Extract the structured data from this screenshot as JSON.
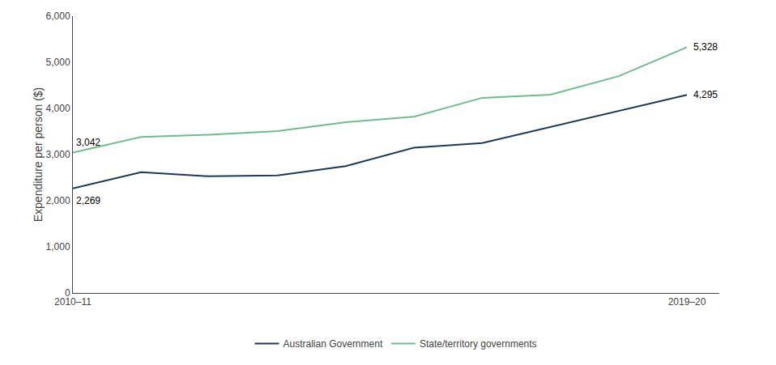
{
  "chart_data": {
    "type": "line",
    "y_label": "Expenditure per person ($)",
    "categories": [
      "2010–11",
      null,
      null,
      null,
      null,
      null,
      null,
      null,
      null,
      "2019–20"
    ],
    "series": [
      {
        "name": "Australian Government",
        "color": "#1a3a5c",
        "values": [
          2269,
          2620,
          2530,
          2550,
          2750,
          3150,
          3250,
          3600,
          3950,
          4295
        ]
      },
      {
        "name": "State/territory governments",
        "color": "#6dbe8c",
        "values": [
          3042,
          3380,
          3430,
          3510,
          3700,
          3820,
          4230,
          4300,
          4700,
          5328
        ]
      }
    ],
    "annotations": [
      {
        "text": "3,042",
        "x": 0,
        "y": 3042
      },
      {
        "text": "2,269",
        "x": 0,
        "y": 2269
      },
      {
        "text": "5,328",
        "x": 9,
        "y": 5328
      },
      {
        "text": "4,295",
        "x": 9,
        "y": 4295
      }
    ],
    "ylim": [
      0,
      6000
    ],
    "yticks": [
      0,
      {
        "value": 1000,
        "label": "1,000"
      },
      {
        "value": 2000,
        "label": "2,000"
      },
      {
        "value": 3000,
        "label": "3,000"
      },
      {
        "value": 4000,
        "label": "4,000"
      },
      {
        "value": 5000,
        "label": "5,000"
      },
      {
        "value": 6000,
        "label": "6,000"
      }
    ],
    "grid": false,
    "legend": "bottom"
  }
}
